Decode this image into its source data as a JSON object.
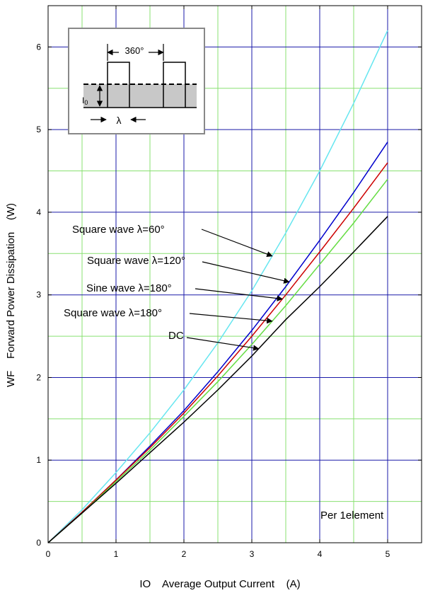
{
  "chart_data": {
    "type": "line",
    "xlabel": "IO    Average Output Current    (A)",
    "ylabel": "WF    Forward Power Dissipation    (W)",
    "xlim": [
      0,
      5.5
    ],
    "ylim": [
      0,
      6.5
    ],
    "x_ticks": [
      "0",
      "1",
      "2",
      "3",
      "4",
      "5"
    ],
    "y_ticks": [
      "0",
      "1",
      "2",
      "3",
      "4",
      "5",
      "6"
    ],
    "major_grid": true,
    "minor_grid": true,
    "major_grid_color": "#1a1aa8",
    "minor_grid_color": "#88e070",
    "series": [
      {
        "name": "Square wave λ=60°",
        "color": "#66e6f0",
        "x": [
          0,
          0.5,
          1,
          1.5,
          2,
          2.5,
          3,
          3.5,
          4,
          4.5,
          5
        ],
        "y": [
          0,
          0.4,
          0.85,
          1.33,
          1.85,
          2.42,
          3.05,
          3.75,
          4.5,
          5.32,
          6.2
        ]
      },
      {
        "name": "Square wave λ=120°",
        "color": "#0000cc",
        "x": [
          0,
          0.5,
          1,
          1.5,
          2,
          2.5,
          3,
          3.5,
          4,
          4.5,
          5
        ],
        "y": [
          0,
          0.37,
          0.76,
          1.17,
          1.6,
          2.07,
          2.57,
          3.1,
          3.66,
          4.24,
          4.85
        ]
      },
      {
        "name": "Sine wave λ=180°",
        "color": "#cc0000",
        "x": [
          0,
          0.5,
          1,
          1.5,
          2,
          2.5,
          3,
          3.5,
          4,
          4.5,
          5
        ],
        "y": [
          0,
          0.37,
          0.76,
          1.15,
          1.57,
          2.02,
          2.5,
          3.0,
          3.52,
          4.05,
          4.6
        ]
      },
      {
        "name": "Square wave λ=180°",
        "color": "#66dd44",
        "x": [
          0,
          0.5,
          1,
          1.5,
          2,
          2.5,
          3,
          3.5,
          4,
          4.5,
          5
        ],
        "y": [
          0,
          0.36,
          0.74,
          1.12,
          1.53,
          1.95,
          2.4,
          2.87,
          3.37,
          3.87,
          4.4
        ]
      },
      {
        "name": "DC",
        "color": "#000000",
        "x": [
          0,
          0.5,
          1,
          1.5,
          2,
          2.5,
          3,
          3.5,
          4,
          4.5,
          5
        ],
        "y": [
          0,
          0.36,
          0.72,
          1.09,
          1.46,
          1.85,
          2.26,
          2.7,
          3.1,
          3.52,
          3.95
        ]
      }
    ],
    "annotations": [
      {
        "text": "Square wave λ=60°",
        "series": 0,
        "target_x": 3.3
      },
      {
        "text": "Square wave λ=120°",
        "series": 1,
        "target_x": 3.55
      },
      {
        "text": "Sine wave λ=180°",
        "series": 2,
        "target_x": 3.45
      },
      {
        "text": "Square wave λ=180°",
        "series": 3,
        "target_x": 3.3
      },
      {
        "text": "DC",
        "series": 4,
        "target_x": 3.1
      }
    ],
    "note": "Per 1element",
    "inset": {
      "period_label": "360°",
      "current_label": "I",
      "current_subscript": "0",
      "width_label": "λ"
    }
  }
}
